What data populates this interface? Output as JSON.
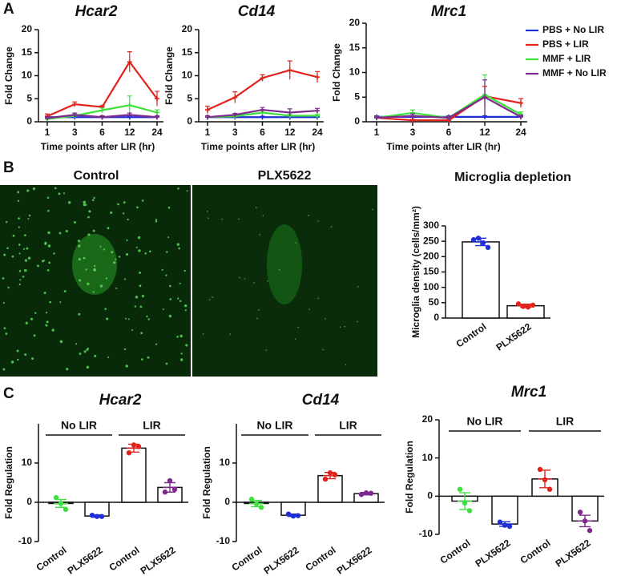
{
  "panel_labels": [
    "A",
    "B",
    "C"
  ],
  "images": [
    {
      "label": "Control"
    },
    {
      "label": "PLX5622"
    }
  ],
  "chart_data": [
    {
      "type": "line",
      "title": "Hcar2",
      "x_label": "Time points after LIR (hr)",
      "y_label": "Fold Change",
      "categories": [
        "1",
        "3",
        "6",
        "12",
        "24"
      ],
      "ylim": [
        0,
        20
      ],
      "yticks": [
        0,
        5,
        10,
        15,
        20
      ],
      "legend": false,
      "series": [
        {
          "name": "PBS + No LIR",
          "color": "#1f2fd6",
          "values": [
            1,
            1,
            1,
            1,
            1
          ],
          "errors": [
            0.2,
            0.2,
            0.2,
            0.2,
            0.2
          ]
        },
        {
          "name": "PBS + LIR",
          "color": "#e3221c",
          "values": [
            1.2,
            3.8,
            3.2,
            13,
            5
          ],
          "errors": [
            0.5,
            0.5,
            0.3,
            2.2,
            1.6
          ]
        },
        {
          "name": "MMF + LIR",
          "color": "#3ee03e",
          "values": [
            0.6,
            1.3,
            2.5,
            3.6,
            2
          ],
          "errors": [
            0.3,
            0.4,
            0.5,
            2,
            0.6
          ]
        },
        {
          "name": "MMF + No LIR",
          "color": "#7d2a8c",
          "values": [
            0.8,
            1.5,
            1,
            1.5,
            1
          ],
          "errors": [
            0.3,
            0.4,
            0.3,
            0.4,
            0.3
          ]
        }
      ]
    },
    {
      "type": "line",
      "title": "Cd14",
      "x_label": "Time points after LIR (hr)",
      "y_label": "Fold Change",
      "categories": [
        "1",
        "3",
        "6",
        "12",
        "24"
      ],
      "ylim": [
        0,
        20
      ],
      "yticks": [
        0,
        5,
        10,
        15,
        20
      ],
      "legend": false,
      "series": [
        {
          "name": "PBS + No LIR",
          "color": "#1f2fd6",
          "values": [
            1,
            1,
            1,
            1,
            1
          ],
          "errors": [
            0.2,
            0.2,
            0.2,
            0.2,
            0.2
          ]
        },
        {
          "name": "PBS + LIR",
          "color": "#e3221c",
          "values": [
            2.6,
            5.3,
            9.5,
            11.2,
            9.7
          ],
          "errors": [
            0.8,
            1.2,
            0.7,
            2,
            1.2
          ]
        },
        {
          "name": "MMF + LIR",
          "color": "#3ee03e",
          "values": [
            1,
            1.2,
            2,
            1.3,
            1.3
          ],
          "errors": [
            0.2,
            0.3,
            0.4,
            0.3,
            0.3
          ]
        },
        {
          "name": "MMF + No LIR",
          "color": "#7d2a8c",
          "values": [
            1,
            1.5,
            2.6,
            2,
            2.4
          ],
          "errors": [
            0.3,
            0.3,
            0.5,
            0.8,
            0.5
          ]
        }
      ]
    },
    {
      "type": "line",
      "title": "Mrc1",
      "x_label": "Time points after LIR (hr)",
      "y_label": "Fold Change",
      "categories": [
        "1",
        "3",
        "6",
        "12",
        "24"
      ],
      "ylim": [
        0,
        20
      ],
      "yticks": [
        0,
        5,
        10,
        15,
        20
      ],
      "legend": "upper right",
      "series": [
        {
          "name": "PBS + No LIR",
          "color": "#1f2fd6",
          "values": [
            1,
            1,
            1,
            1,
            1
          ],
          "errors": [
            0.2,
            0.2,
            0.2,
            0.2,
            0.2
          ]
        },
        {
          "name": "PBS + LIR",
          "color": "#e3221c",
          "values": [
            0.8,
            0.3,
            0.3,
            5.2,
            3.8
          ],
          "errors": [
            0.3,
            0.2,
            0.2,
            2,
            0.9
          ]
        },
        {
          "name": "MMF + LIR",
          "color": "#3ee03e",
          "values": [
            0.8,
            1.8,
            0.8,
            5.5,
            1.5
          ],
          "errors": [
            0.3,
            0.6,
            0.3,
            4,
            0.5
          ]
        },
        {
          "name": "MMF + No LIR",
          "color": "#7d2a8c",
          "values": [
            0.8,
            1.2,
            0.8,
            5,
            1
          ],
          "errors": [
            0.3,
            0.4,
            0.3,
            3.5,
            0.3
          ]
        }
      ]
    },
    {
      "type": "bar",
      "title": "Microglia depletion",
      "y_label": "Microglia density (cells/mm²)",
      "categories": [
        "Control",
        "PLX5622"
      ],
      "values": [
        248,
        40
      ],
      "errors": [
        12,
        5
      ],
      "points": [
        [
          255,
          260,
          245,
          230
        ],
        [
          46,
          38,
          36,
          42
        ]
      ],
      "colors": [
        "#1f2fd6",
        "#e3221c"
      ],
      "ylim": [
        0,
        300
      ],
      "yticks": [
        0,
        50,
        100,
        150,
        200,
        250,
        300
      ]
    },
    {
      "type": "bar",
      "title": "Hcar2",
      "y_label": "Fold Regulation",
      "groups": [
        "No LIR",
        "LIR"
      ],
      "categories": [
        "Control",
        "PLX5622",
        "Control",
        "PLX5622"
      ],
      "values": [
        -0.3,
        -3.5,
        13.8,
        3.8
      ],
      "errors": [
        1,
        0.3,
        1,
        1.2
      ],
      "points": [
        [
          1.2,
          -0.3,
          -1.8
        ],
        [
          -3.3,
          -3.6,
          -3.6
        ],
        [
          12.6,
          14.6,
          14.2
        ],
        [
          2.6,
          5.5,
          3.3
        ]
      ],
      "colors": [
        "#3ee03e",
        "#1f2fd6",
        "#e3221c",
        "#7d2a8c"
      ],
      "ylim": [
        -10,
        20
      ],
      "yticks": [
        -10,
        0,
        10
      ]
    },
    {
      "type": "bar",
      "title": "Cd14",
      "y_label": "Fold Regulation",
      "groups": [
        "No LIR",
        "LIR"
      ],
      "categories": [
        "Control",
        "PLX5622",
        "Control",
        "PLX5622"
      ],
      "values": [
        -0.3,
        -3.3,
        6.8,
        2.2
      ],
      "errors": [
        0.8,
        0.3,
        0.8,
        0.3
      ],
      "points": [
        [
          0.8,
          -0.4,
          -1.3
        ],
        [
          -3,
          -3.5,
          -3.4
        ],
        [
          5.9,
          7.5,
          7
        ],
        [
          2,
          2.4,
          2.3
        ]
      ],
      "colors": [
        "#3ee03e",
        "#1f2fd6",
        "#e3221c",
        "#7d2a8c"
      ],
      "ylim": [
        -10,
        20
      ],
      "yticks": [
        -10,
        0,
        10
      ]
    },
    {
      "type": "bar",
      "title": "Mrc1",
      "y_label": "Fold Regulation",
      "groups": [
        "No LIR",
        "LIR"
      ],
      "categories": [
        "Control",
        "PLX5622",
        "Control",
        "PLX5622"
      ],
      "values": [
        -1.3,
        -7.3,
        4.5,
        -6.5
      ],
      "errors": [
        2.2,
        0.6,
        2.3,
        1.5
      ],
      "points": [
        [
          1.8,
          -1.8,
          -3.8
        ],
        [
          -6.8,
          -7.6,
          -7.9
        ],
        [
          7,
          4.3,
          1.8
        ],
        [
          -4.2,
          -6.5,
          -9
        ]
      ],
      "colors": [
        "#3ee03e",
        "#1f2fd6",
        "#e3221c",
        "#7d2a8c"
      ],
      "ylim": [
        -10,
        20
      ],
      "yticks": [
        -10,
        0,
        10,
        20
      ]
    }
  ]
}
